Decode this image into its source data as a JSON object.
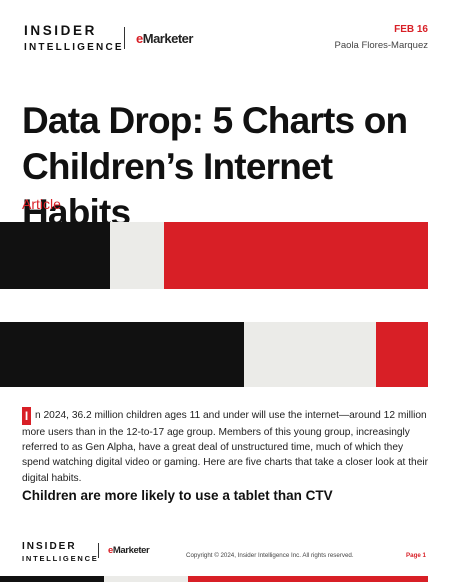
{
  "header": {
    "brand_line1": "INSIDER",
    "brand_line2": "INTELLIGENCE",
    "emarketer_e": "e",
    "emarketer_rest": "Marketer",
    "date": "FEB 16",
    "author": "Paola Flores-Marquez"
  },
  "title": "Data Drop: 5 Charts on Children’s Internet Habits",
  "type_label": "Article",
  "colors": {
    "accent": "#d81f26",
    "black": "#111111",
    "light_gray": "#ebebe8"
  },
  "body": {
    "dropcap": "I",
    "text": "n 2024, 36.2 million children ages 11 and under will use the internet—around 12 million more users than in the 12-to-17 age group. Members of this young group, increasingly referred to as Gen Alpha, have a great deal of unstructured time, much of which they spend watching digital video or gaming. Here are five charts that take a closer look at their digital habits."
  },
  "subhead": "Children are more likely to use a tablet than CTV",
  "footer": {
    "brand_line1": "INSIDER",
    "brand_line2": "INTELLIGENCE",
    "emarketer_e": "e",
    "emarketer_rest": "Marketer",
    "copyright": "Copyright © 2024, Insider Intelligence Inc. All rights reserved.",
    "page": "Page 1"
  }
}
